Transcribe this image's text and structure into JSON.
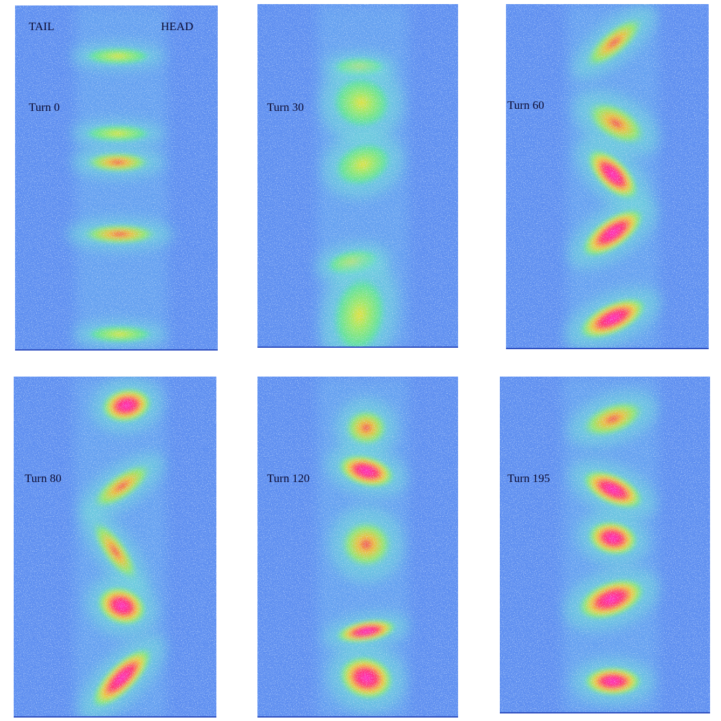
{
  "panels": [
    {
      "label": "Turn 0",
      "left": "TAIL",
      "right": "HEAD"
    },
    {
      "label": "Turn 30"
    },
    {
      "label": "Turn 60"
    },
    {
      "label": "Turn 80"
    },
    {
      "label": "Turn 120"
    },
    {
      "label": "Turn 195"
    }
  ]
}
